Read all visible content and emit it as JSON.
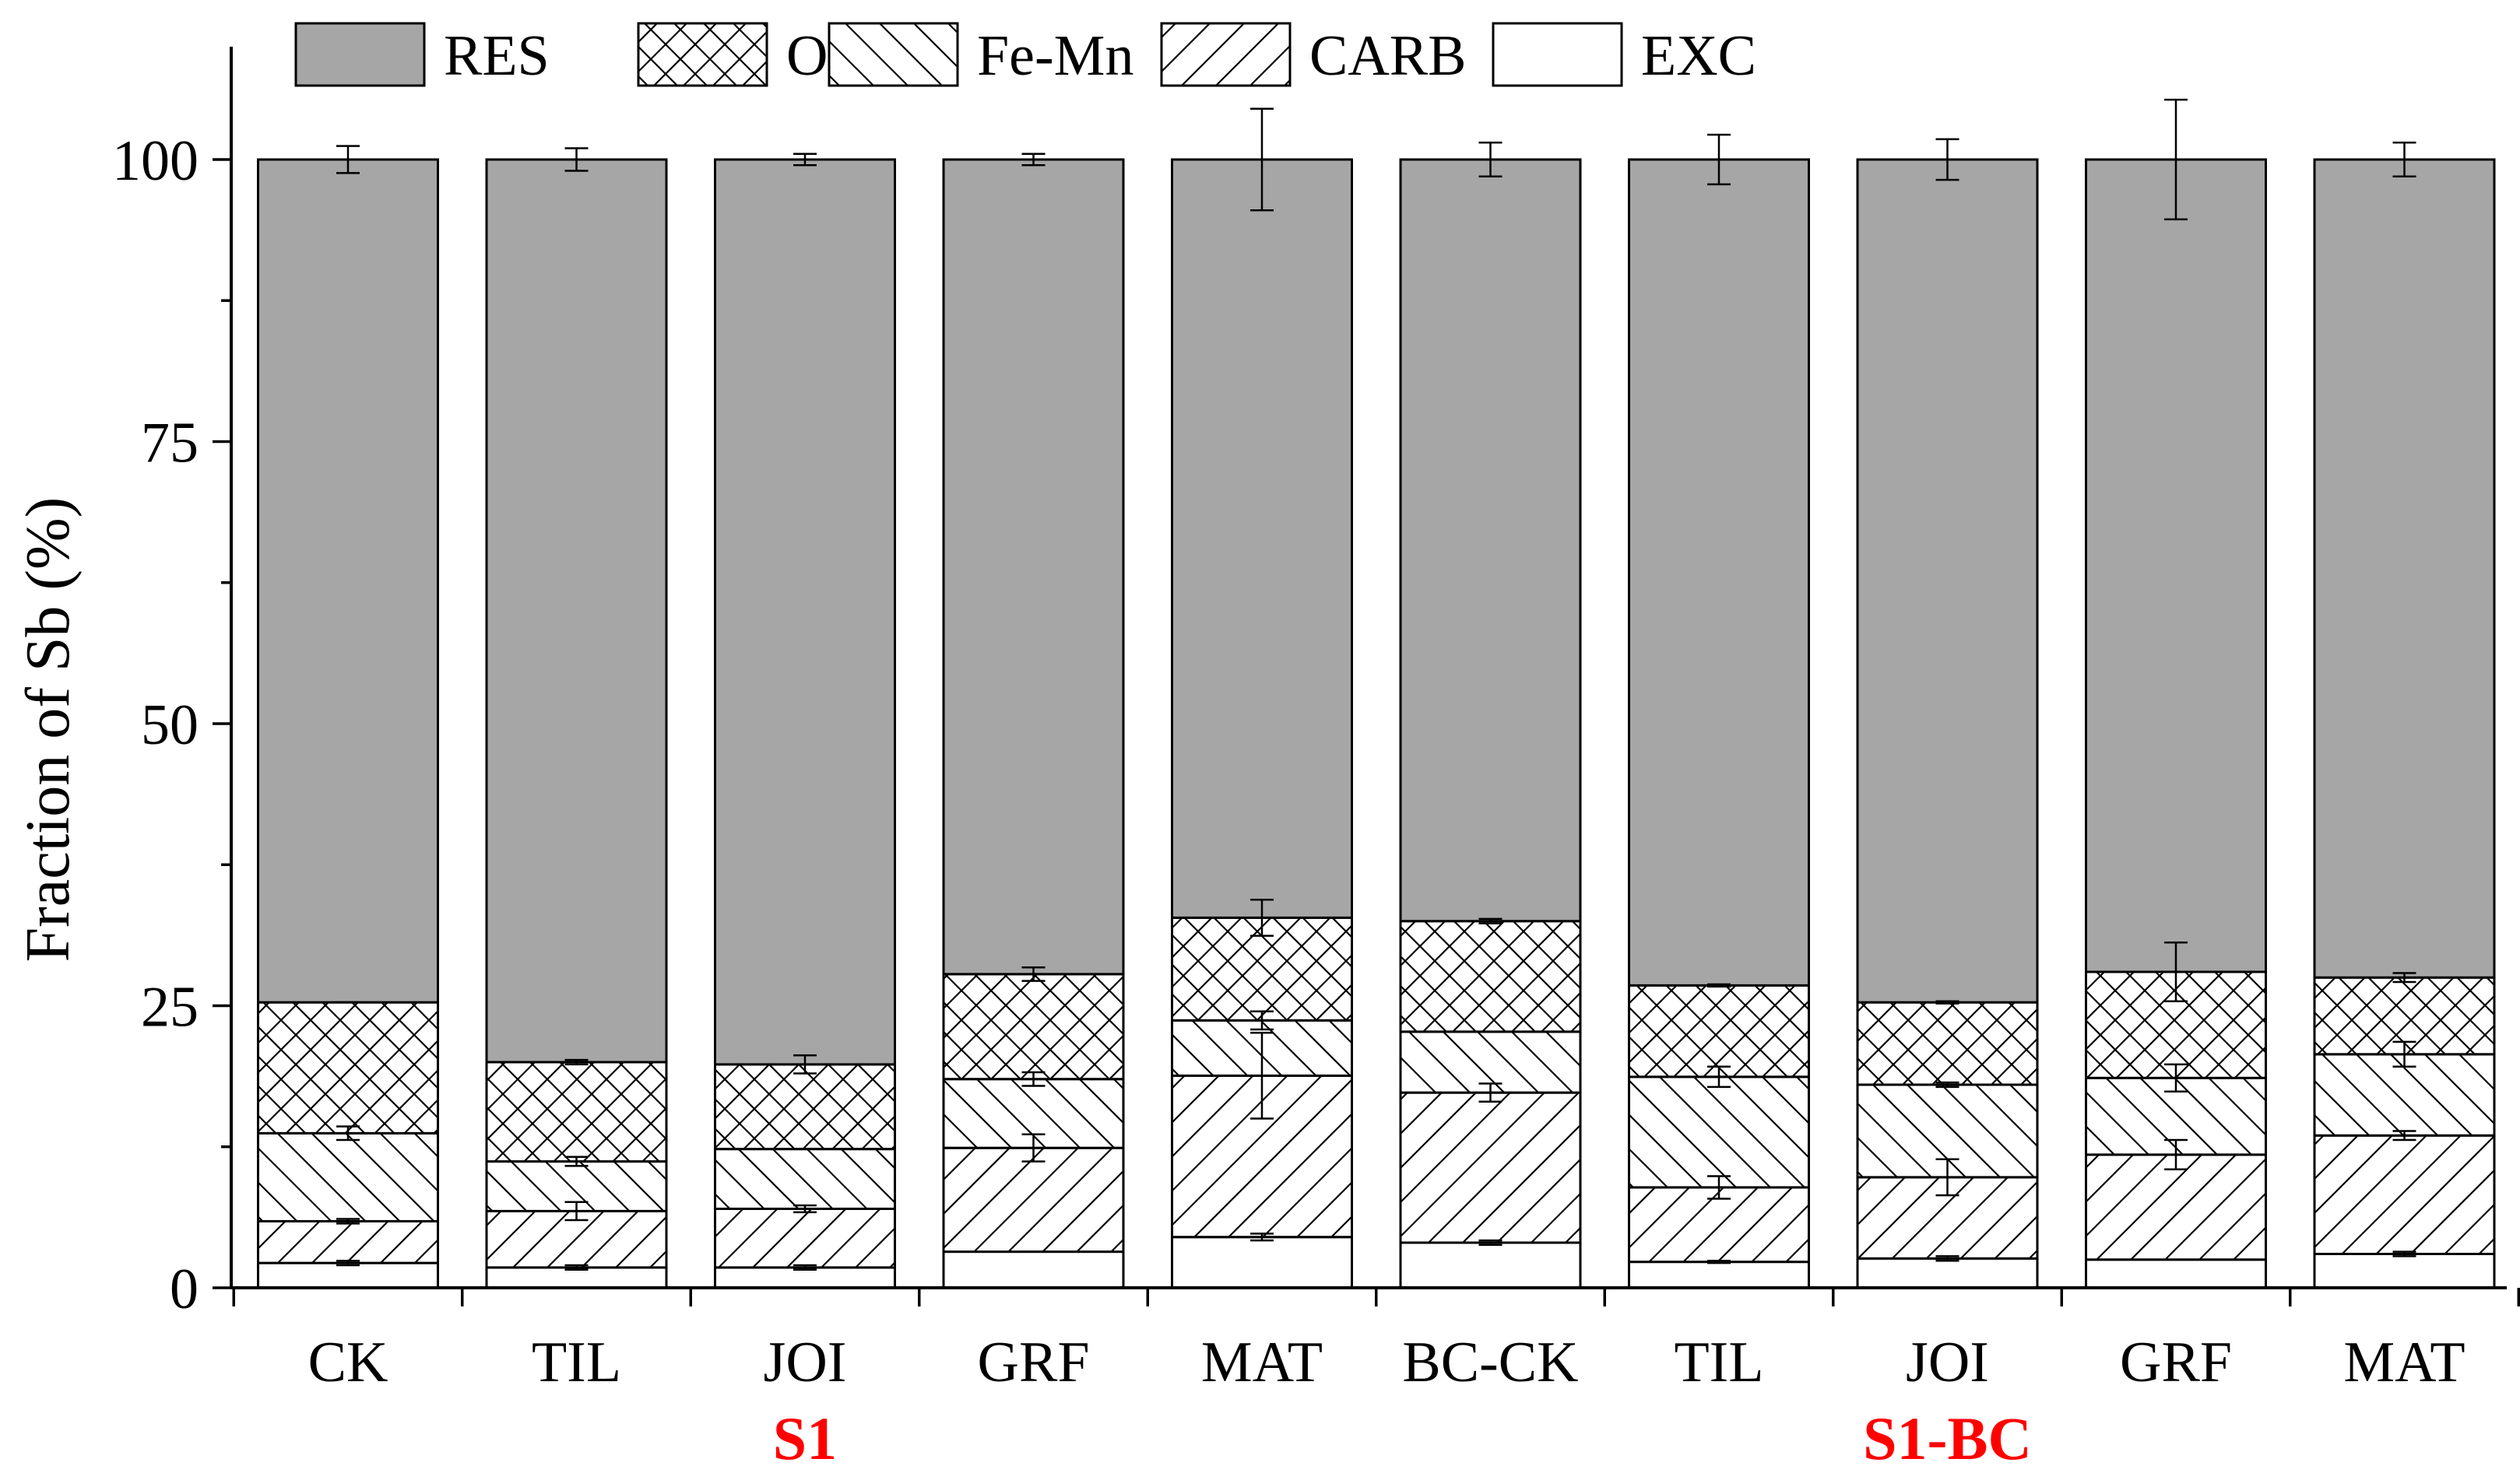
{
  "chart_data": {
    "type": "bar",
    "stacked": true,
    "categories": [
      "CK",
      "TIL",
      "JOI",
      "GRF",
      "MAT",
      "BC-CK",
      "TIL",
      "JOI",
      "GRF",
      "MAT"
    ],
    "group_labels": [
      {
        "text": "S1",
        "under": [
          0,
          4
        ]
      },
      {
        "text": "S1-BC",
        "under": [
          5,
          9
        ]
      }
    ],
    "ylabel": "Fraction of Sb (%)",
    "ylim": [
      0,
      110
    ],
    "yticks": [
      0,
      25,
      50,
      75,
      100
    ],
    "legend_position": "top",
    "series": [
      {
        "name": "EXC",
        "pattern": "none",
        "values": [
          2.2,
          1.8,
          1.8,
          3.2,
          4.5,
          4.0,
          2.3,
          2.6,
          2.5,
          3.0
        ],
        "errors": [
          0.2,
          0.2,
          0.2,
          0,
          0.3,
          0.2,
          0.1,
          0.2,
          0,
          0.2
        ]
      },
      {
        "name": "CARB",
        "pattern": "diag-fwd",
        "values": [
          3.7,
          5.0,
          5.2,
          9.2,
          14.3,
          13.3,
          6.6,
          7.2,
          9.3,
          10.5
        ],
        "errors": [
          0.2,
          0.8,
          0.3,
          1.2,
          3.8,
          0.8,
          1.0,
          1.6,
          1.3,
          0.4
        ]
      },
      {
        "name": "Fe-Mn",
        "pattern": "diag-back",
        "values": [
          7.8,
          4.4,
          5.3,
          6.1,
          4.9,
          5.4,
          9.8,
          8.2,
          6.8,
          7.2
        ],
        "errors": [
          0.6,
          0.4,
          0,
          0.6,
          0.8,
          0,
          0.9,
          0.2,
          1.2,
          1.1
        ]
      },
      {
        "name": "OM",
        "pattern": "cross",
        "values": [
          11.6,
          8.8,
          7.5,
          9.3,
          9.1,
          9.8,
          8.1,
          7.3,
          9.4,
          6.8
        ],
        "errors": [
          0,
          0.2,
          0.8,
          0.6,
          1.6,
          0.2,
          0.1,
          0.1,
          2.6,
          0.4
        ]
      },
      {
        "name": "RES",
        "pattern": "solid-gray",
        "values": [
          74.7,
          80.0,
          80.2,
          72.2,
          67.2,
          67.5,
          73.2,
          74.7,
          72.0,
          72.5
        ],
        "errors": [
          1.2,
          1.0,
          0.5,
          0.5,
          4.5,
          1.5,
          2.2,
          1.8,
          5.3,
          1.5
        ]
      }
    ],
    "colors": {
      "res": "#a6a6a6",
      "label_accent": "#ff0000",
      "ink": "#000000"
    }
  }
}
